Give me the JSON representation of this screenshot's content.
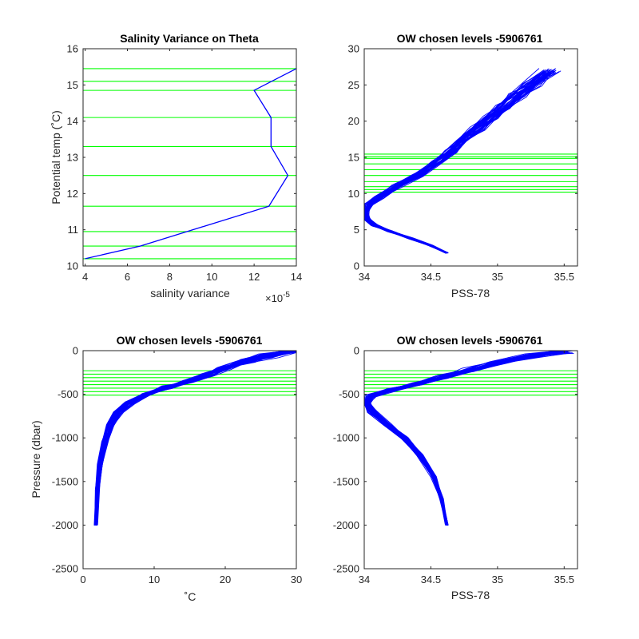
{
  "colors": {
    "profile": "#0000ff",
    "level": "#00ff00",
    "axis": "#262626"
  },
  "chart_data": [
    {
      "id": "variance",
      "type": "line",
      "title": "Salinity Variance on Theta",
      "xlabel": "salinity variance",
      "ylabel": "Potential temp (˚C)",
      "x_exponent": "×10",
      "x_exponent_power": "-5",
      "xlim": [
        3.9,
        14
      ],
      "ylim": [
        10,
        16
      ],
      "xticks": [
        4,
        6,
        8,
        10,
        12,
        14
      ],
      "yticks": [
        10,
        11,
        12,
        13,
        14,
        15,
        16
      ],
      "levels": [
        10.2,
        10.55,
        10.95,
        11.65,
        12.5,
        13.3,
        14.1,
        14.85,
        15.1,
        15.45
      ],
      "series": [
        {
          "x": [
            14.0,
            12.0,
            12.8,
            12.8,
            13.6,
            12.7,
            6.6,
            4.0
          ],
          "y": [
            15.45,
            14.85,
            14.1,
            13.3,
            12.5,
            11.65,
            10.55,
            10.2
          ]
        }
      ]
    },
    {
      "id": "theta-salinity",
      "type": "line",
      "title": "OW chosen levels -5906761",
      "xlabel": "PSS-78",
      "ylabel": "",
      "xlim": [
        34,
        35.6
      ],
      "ylim": [
        0,
        30
      ],
      "xticks": [
        34,
        34.5,
        35,
        35.5
      ],
      "yticks": [
        0,
        5,
        10,
        15,
        20,
        25,
        30
      ],
      "levels": [
        10.2,
        10.55,
        10.95,
        11.65,
        12.5,
        13.3,
        14.1,
        14.85,
        15.1,
        15.45
      ],
      "profile_shape": {
        "x": [
          34.62,
          34.5,
          34.35,
          34.2,
          34.08,
          34.02,
          34.01,
          34.04,
          34.12,
          34.25,
          34.4,
          34.55,
          34.65,
          34.75,
          34.85,
          34.95,
          35.05,
          35.15,
          35.25,
          35.4
        ],
        "y": [
          1.8,
          2.8,
          3.8,
          4.8,
          5.6,
          6.5,
          7.5,
          8.5,
          9.5,
          11,
          12.5,
          14.3,
          15.8,
          17.5,
          19,
          20.5,
          22,
          23.5,
          25,
          27
        ]
      },
      "profile_count": 45
    },
    {
      "id": "pressure-temperature",
      "type": "line",
      "title": "OW chosen levels -5906761",
      "xlabel": "˚C",
      "ylabel": "Pressure (dbar)",
      "xlim": [
        0,
        30
      ],
      "ylim": [
        -2500,
        0
      ],
      "xticks": [
        0,
        10,
        20,
        30
      ],
      "yticks": [
        -2500,
        -2000,
        -1500,
        -1000,
        -500,
        0
      ],
      "levels": [
        -230,
        -270,
        -310,
        -350,
        -390,
        -430,
        -470,
        -510
      ],
      "profile_shape": {
        "x": [
          1.8,
          2.0,
          2.4,
          3.0,
          3.8,
          5.0,
          6.5,
          9.0,
          12.0,
          15.0,
          17.5,
          20.0,
          23.0,
          26.0,
          29.5
        ],
        "y": [
          -2000,
          -1600,
          -1300,
          -1050,
          -850,
          -700,
          -600,
          -500,
          -420,
          -350,
          -280,
          -200,
          -120,
          -60,
          0
        ]
      },
      "profile_count": 45
    },
    {
      "id": "pressure-salinity",
      "type": "line",
      "title": "OW chosen levels -5906761",
      "xlabel": "PSS-78",
      "ylabel": "",
      "xlim": [
        34,
        35.6
      ],
      "ylim": [
        -2500,
        0
      ],
      "xticks": [
        34,
        34.5,
        35,
        35.5
      ],
      "yticks": [
        -2500,
        -2000,
        -1500,
        -1000,
        -500,
        0
      ],
      "levels": [
        -230,
        -270,
        -310,
        -350,
        -390,
        -430,
        -470,
        -510
      ],
      "profile_shape": {
        "x": [
          34.62,
          34.58,
          34.52,
          34.42,
          34.3,
          34.18,
          34.06,
          34.01,
          34.05,
          34.2,
          34.4,
          34.6,
          34.8,
          35.0,
          35.25,
          35.5
        ],
        "y": [
          -2000,
          -1700,
          -1450,
          -1200,
          -1000,
          -850,
          -700,
          -600,
          -520,
          -450,
          -380,
          -300,
          -220,
          -140,
          -60,
          -10
        ]
      },
      "profile_count": 45
    }
  ]
}
